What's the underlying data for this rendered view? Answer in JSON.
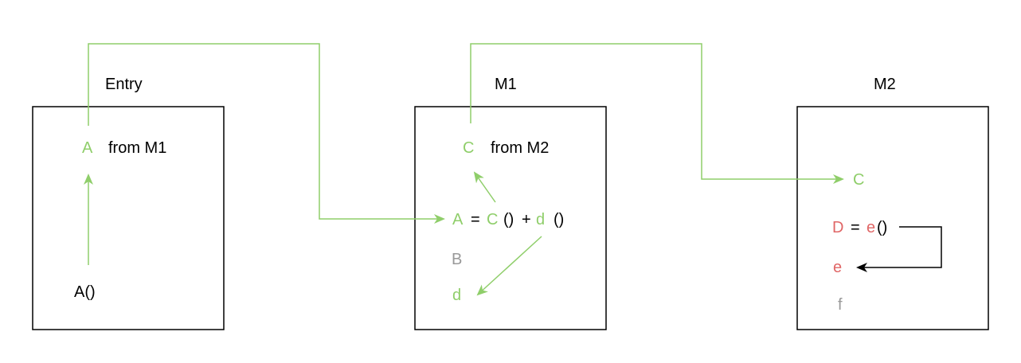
{
  "colors": {
    "green": "#8fce6a",
    "red": "#e06666",
    "gray": "#999999",
    "black": "#000000"
  },
  "modules": {
    "entry": {
      "title": "Entry",
      "import_name": "A",
      "import_from": "from M1",
      "call": "A()"
    },
    "m1": {
      "title": "M1",
      "import_name": "C",
      "import_from": "from M2",
      "assign_target": "A",
      "equals": "=",
      "call_c": "C",
      "parens_c": "()",
      "plus": "+",
      "call_d": "d",
      "parens_d": "()",
      "unused": "B",
      "local_d": "d"
    },
    "m2": {
      "title": "M2",
      "export_c": "C",
      "assign_target": "D",
      "equals": "=",
      "call_e": "e",
      "parens_e": "()",
      "local_e": "e",
      "unused": "f"
    }
  }
}
